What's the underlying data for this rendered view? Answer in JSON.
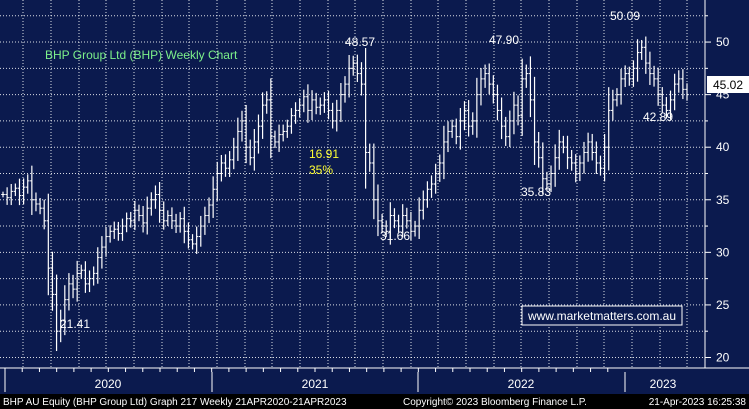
{
  "chart_title": "BHP Group Ltd (BHP) Weekly Chart",
  "watermark": "www.marketmatters.com.au",
  "price_label": "45.02",
  "footer": {
    "left": "BHP AU Equity (BHP Group Ltd) Graph 217  Weekly 21APR2020-21APR2023",
    "middle": "Copyright© 2023 Bloomberg Finance L.P.",
    "right": "21-Apr-2023 16:25:38"
  },
  "colors": {
    "background": "#0b1a4e",
    "grid": "#ffffff",
    "bars": "#ffffff",
    "title_text": "#7cf08a",
    "highlight_text": "#ffff33",
    "watermark_border": "#ffffff",
    "watermark_text": "#ffffff",
    "footer_bg": "#000000",
    "price_label_bg": "#ffffff",
    "price_label_text": "#000000"
  },
  "chart_data": {
    "type": "ohlc",
    "ylim": [
      19,
      54
    ],
    "yticks": [
      20,
      25,
      30,
      35,
      40,
      45,
      50
    ],
    "xlabels": [
      "2020",
      "2021",
      "2022",
      "2023"
    ],
    "annotations": [
      {
        "text": "21.41",
        "color": "white"
      },
      {
        "text": "48.57",
        "color": "white"
      },
      {
        "text": "16.91",
        "color": "yellow"
      },
      {
        "text": "35%",
        "color": "yellow"
      },
      {
        "text": "31.66",
        "color": "white"
      },
      {
        "text": "47.90",
        "color": "white"
      },
      {
        "text": "35.83",
        "color": "white"
      },
      {
        "text": "50.09",
        "color": "white"
      },
      {
        "text": "42.89",
        "color": "white"
      }
    ],
    "close": [
      35.5,
      35.2,
      35.8,
      36.1,
      35.4,
      36.2,
      36.8,
      35.0,
      34.6,
      34.2,
      33.0,
      28.5,
      26.0,
      22.5,
      23.5,
      25.5,
      27.0,
      26.5,
      28.0,
      28.3,
      27.0,
      27.5,
      28.0,
      29.5,
      30.5,
      31.5,
      32.0,
      32.2,
      31.8,
      32.5,
      33.2,
      33.0,
      34.0,
      33.5,
      32.8,
      34.2,
      35.0,
      35.5,
      34.0,
      33.0,
      33.5,
      33.0,
      32.5,
      33.2,
      32.0,
      31.2,
      30.8,
      31.5,
      32.5,
      33.5,
      34.5,
      36.0,
      37.5,
      38.5,
      38.0,
      38.8,
      40.0,
      41.5,
      42.5,
      40.0,
      39.0,
      40.5,
      42.0,
      44.0,
      44.5,
      41.0,
      40.5,
      41.2,
      41.5,
      42.0,
      43.0,
      43.5,
      44.0,
      44.8,
      43.5,
      44.5,
      43.8,
      44.0,
      44.5,
      43.5,
      42.5,
      43.5,
      45.0,
      46.0,
      47.5,
      48.0,
      47.0,
      46.0,
      39.5,
      38.5,
      35.0,
      33.0,
      32.5,
      32.0,
      33.5,
      33.0,
      32.5,
      33.5,
      33.0,
      32.0,
      32.5,
      34.0,
      35.0,
      36.0,
      36.5,
      37.5,
      38.5,
      40.5,
      41.5,
      42.0,
      41.0,
      42.5,
      43.5,
      42.0,
      42.5,
      45.0,
      46.5,
      47.0,
      46.0,
      45.0,
      43.5,
      42.0,
      41.0,
      42.5,
      44.0,
      43.0,
      46.5,
      47.0,
      44.5,
      40.5,
      39.0,
      37.0,
      36.5,
      37.5,
      39.0,
      40.5,
      40.0,
      39.0,
      38.5,
      37.5,
      38.5,
      39.5,
      40.5,
      39.5,
      38.5,
      38.0,
      40.0,
      43.5,
      44.5,
      45.0,
      46.5,
      47.0,
      46.5,
      47.5,
      49.0,
      49.5,
      48.0,
      47.0,
      46.5,
      45.0,
      44.0,
      43.5,
      44.5,
      46.0,
      46.5,
      45.5,
      45.0
    ]
  }
}
